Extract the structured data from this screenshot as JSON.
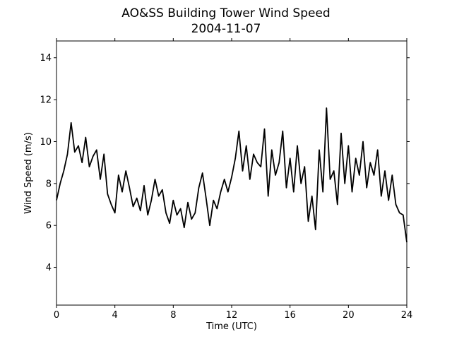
{
  "chart_data": {
    "type": "line",
    "title": "AO&SS Building Tower Wind Speed",
    "subtitle": "2004-11-07",
    "xlabel": "Time (UTC)",
    "ylabel": "Wind Speed (m/s)",
    "xlim": [
      0,
      24
    ],
    "ylim": [
      2.2,
      14.8
    ],
    "xticks": [
      0,
      4,
      8,
      12,
      16,
      20,
      24
    ],
    "xtick_labels": [
      "0",
      "4",
      "8",
      "12",
      "16",
      "20",
      "24"
    ],
    "yticks": [
      4,
      6,
      8,
      10,
      12,
      14
    ],
    "ytick_labels": [
      "4",
      "6",
      "8",
      "10",
      "12",
      "14"
    ],
    "grid": false,
    "series": [
      {
        "color": "#000000",
        "x": [
          0,
          0.25,
          0.5,
          0.75,
          1.0,
          1.25,
          1.5,
          1.75,
          2.0,
          2.25,
          2.5,
          2.75,
          3.0,
          3.25,
          3.5,
          3.75,
          4.0,
          4.25,
          4.5,
          4.75,
          5.0,
          5.25,
          5.5,
          5.75,
          6.0,
          6.25,
          6.5,
          6.75,
          7.0,
          7.25,
          7.5,
          7.75,
          8.0,
          8.25,
          8.5,
          8.75,
          9.0,
          9.25,
          9.5,
          9.75,
          10.0,
          10.25,
          10.5,
          10.75,
          11.0,
          11.25,
          11.5,
          11.75,
          12.0,
          12.25,
          12.5,
          12.75,
          13.0,
          13.25,
          13.5,
          13.75,
          14.0,
          14.25,
          14.5,
          14.75,
          15.0,
          15.25,
          15.5,
          15.75,
          16.0,
          16.25,
          16.5,
          16.75,
          17.0,
          17.25,
          17.5,
          17.75,
          18.0,
          18.25,
          18.5,
          18.75,
          19.0,
          19.25,
          19.5,
          19.75,
          20.0,
          20.25,
          20.5,
          20.75,
          21.0,
          21.25,
          21.5,
          21.75,
          22.0,
          22.25,
          22.5,
          22.75,
          23.0,
          23.25,
          23.5,
          23.75,
          24.0
        ],
        "y": [
          7.2,
          8.0,
          8.6,
          9.4,
          10.9,
          9.5,
          9.8,
          9.0,
          10.2,
          8.8,
          9.3,
          9.6,
          8.2,
          9.4,
          7.5,
          7.0,
          6.6,
          8.4,
          7.6,
          8.6,
          7.8,
          6.9,
          7.3,
          6.7,
          7.9,
          6.5,
          7.2,
          8.2,
          7.4,
          7.7,
          6.6,
          6.1,
          7.2,
          6.5,
          6.8,
          5.9,
          7.1,
          6.3,
          6.6,
          7.8,
          8.5,
          7.3,
          6.0,
          7.2,
          6.8,
          7.6,
          8.2,
          7.6,
          8.3,
          9.2,
          10.5,
          8.6,
          9.8,
          8.2,
          9.4,
          9.0,
          8.8,
          10.6,
          7.4,
          9.6,
          8.4,
          9.0,
          10.5,
          7.8,
          9.2,
          7.6,
          9.8,
          8.0,
          8.8,
          6.2,
          7.4,
          5.8,
          9.6,
          7.6,
          11.6,
          8.2,
          8.6,
          7.0,
          10.4,
          8.0,
          9.8,
          7.6,
          9.2,
          8.4,
          10.0,
          7.8,
          9.0,
          8.4,
          9.6,
          7.4,
          8.6,
          7.2,
          8.4,
          7.0,
          6.6,
          6.5,
          5.2
        ]
      }
    ]
  }
}
